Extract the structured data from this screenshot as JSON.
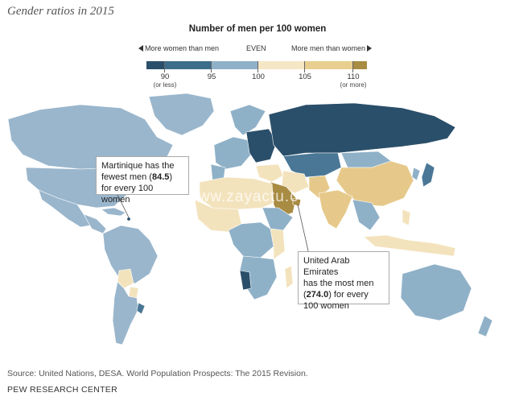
{
  "title": "Gender ratios in 2015",
  "legend": {
    "title": "Number of men per 100 women",
    "left_direction": "More women than men",
    "even_label": "EVEN",
    "right_direction": "More men than women",
    "ticks": [
      {
        "value": "90",
        "sub": "(or less)"
      },
      {
        "value": "95",
        "sub": ""
      },
      {
        "value": "100",
        "sub": ""
      },
      {
        "value": "105",
        "sub": ""
      },
      {
        "value": "110",
        "sub": "(or more)"
      }
    ],
    "colors": [
      "#2a4f6a",
      "#3e6d8c",
      "#8fb1c8",
      "#f5e7c5",
      "#e9cf8f",
      "#a98c43"
    ]
  },
  "palette": {
    "ocean": "#ffffff",
    "land_default": "#9ab6cc",
    "very_low": "#2a4f6a",
    "low": "#4a7796",
    "mid_low": "#8fb1c8",
    "near_even": "#f3e3bd",
    "mid_high": "#e6c98a",
    "very_high": "#a98c43"
  },
  "callouts": {
    "martinique": {
      "line1": "Martinique has the",
      "line2_pre": "fewest men (",
      "line2_value": "84.5",
      "line2_post": ")",
      "line3": "for every 100 women"
    },
    "uae": {
      "line1": "United Arab Emirates",
      "line2": "has the most men",
      "line3_value": "274.0",
      "line3_post": ") for every",
      "line4": "100 women"
    }
  },
  "watermark": "www.zayactu.org",
  "source": "Source: United Nations, DESA. World Population Prospects: The 2015 Revision.",
  "credit": "PEW RESEARCH CENTER"
}
